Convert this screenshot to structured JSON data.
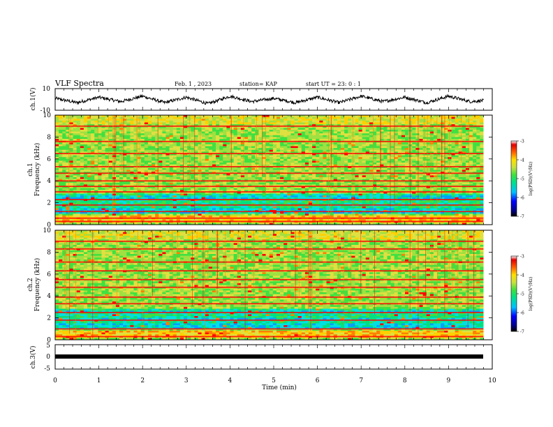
{
  "header": {
    "title": "VLF Spectra",
    "date": "Feb. 1 , 2023",
    "station": "station= KAP",
    "start": "start UT = 23: 0 : 1"
  },
  "colors": {
    "cmap": [
      "#000080",
      "#0000ff",
      "#00a0ff",
      "#00e0e0",
      "#00e080",
      "#40e040",
      "#a0e040",
      "#e0e040",
      "#ffd000",
      "#ff8000",
      "#ff0000",
      "#d00000",
      "#ffffff"
    ],
    "line": "#000000"
  },
  "chart_data": [
    {
      "type": "line",
      "panel": "ch1-waveform",
      "ylabel": "ch.1(V)",
      "ylim": [
        -10,
        10
      ],
      "yticks": [
        "10",
        "-10"
      ],
      "description_values": "oscillating signal roughly between -5 and 5 V",
      "x": [
        0,
        0.5,
        1,
        1.5,
        2,
        2.5,
        3,
        3.5,
        4,
        4.5,
        5,
        5.5,
        6,
        6.5,
        7,
        7.5,
        8,
        8.5,
        9,
        9.5,
        9.8
      ],
      "y": [
        1,
        -3,
        2,
        -2,
        3,
        -3,
        2,
        -4,
        3,
        -2,
        1,
        -3,
        2,
        -3,
        3,
        -2,
        2,
        -3,
        3,
        -2,
        -1
      ]
    },
    {
      "type": "heatmap",
      "panel": "ch1-spectrogram",
      "ylabel": "Frequency (kHz)",
      "channel_label": "ch.1",
      "ylim": [
        0,
        10
      ],
      "yticks": [
        "0",
        "2",
        "4",
        "6",
        "8",
        "10"
      ],
      "colorbar": {
        "label": "log(PSD)(V²/Hz)",
        "ticks": [
          "-3",
          "-4",
          "-5",
          "-6",
          "-7"
        ],
        "range": [
          -7,
          -3
        ]
      },
      "bands_khz": [
        0.3,
        0.6,
        1.2,
        1.8,
        2.3,
        3.0,
        3.5,
        4.0,
        4.7,
        5.3,
        6.5,
        7.6,
        9.0
      ]
    },
    {
      "type": "heatmap",
      "panel": "ch2-spectrogram",
      "ylabel": "Frequency (kHz)",
      "channel_label": "ch.2",
      "ylim": [
        0,
        10
      ],
      "yticks": [
        "0",
        "2",
        "4",
        "6",
        "8",
        "10"
      ],
      "colorbar": {
        "label": "log(PSD)(V²/Hz)",
        "ticks": [
          "-3",
          "-4",
          "-5",
          "-6",
          "-7"
        ],
        "range": [
          -7,
          -3
        ]
      },
      "bands_khz": [
        0.3,
        1.0,
        1.8,
        2.5,
        3.3,
        3.9,
        4.8,
        5.5,
        6.3,
        7.1,
        8.3,
        9.0
      ]
    },
    {
      "type": "line",
      "panel": "ch3-signal",
      "ylabel": "ch.3(V)",
      "ylim": [
        -5,
        5
      ],
      "yticks": [
        "5",
        "0",
        "-5"
      ],
      "x": [
        0,
        9.8
      ],
      "y": [
        0,
        0
      ]
    }
  ],
  "xaxis": {
    "label": "Time (min)",
    "ticks": [
      "0",
      "1",
      "2",
      "3",
      "4",
      "5",
      "6",
      "7",
      "8",
      "9",
      "10"
    ],
    "xlim": [
      0,
      10
    ]
  }
}
